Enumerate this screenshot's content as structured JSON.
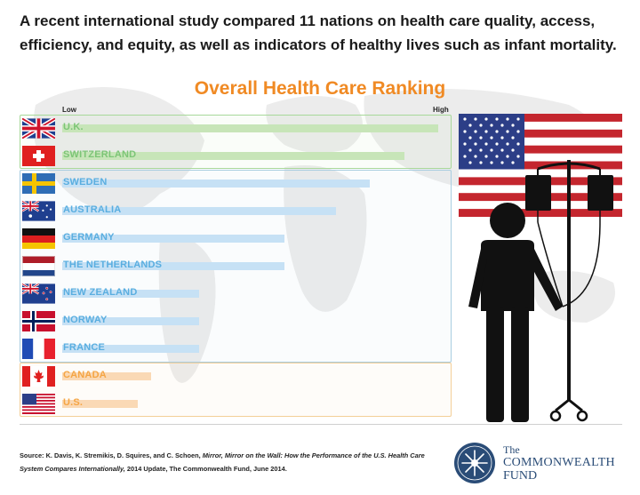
{
  "headline": "A recent international study compared 11 nations on health care quality, access, efficiency, and equity, as well as indicators of healthy lives such as infant mortality.",
  "chart_data": {
    "type": "bar",
    "orientation": "horizontal",
    "title": "Overall Health Care Ranking",
    "axis_low_label": "Low",
    "axis_high_label": "High",
    "categories": [
      "U.K.",
      "SWITZERLAND",
      "SWEDEN",
      "AUSTRALIA",
      "GERMANY",
      "THE NETHERLANDS",
      "NEW ZEALAND",
      "NORWAY",
      "FRANCE",
      "CANADA",
      "U.S."
    ],
    "values": [
      11,
      10,
      9,
      8,
      6.5,
      6.5,
      4,
      4,
      4,
      2.6,
      2.2
    ],
    "xlim": [
      0,
      11
    ],
    "groups": [
      {
        "members": [
          "U.K.",
          "SWITZERLAND"
        ],
        "color": "#c7e5b8",
        "text_color": "#7cc576"
      },
      {
        "members": [
          "SWEDEN",
          "AUSTRALIA",
          "GERMANY",
          "THE NETHERLANDS",
          "NEW ZEALAND",
          "NORWAY",
          "FRANCE"
        ],
        "color": "#c6e1f5",
        "text_color": "#5aaee0"
      },
      {
        "members": [
          "CANADA",
          "U.S."
        ],
        "color": "#fad9b5",
        "text_color": "#f5a544"
      }
    ]
  },
  "source": {
    "prefix": "Source: K. Davis, K. Stremikis, D. Squires, and C. Schoen, ",
    "italic": "Mirror, Mirror on the Wall: How the Performance of the U.S. Health Care System Compares Internationally,",
    "suffix": " 2014 Update, The Commonwealth Fund, June 2014."
  },
  "logo": {
    "line1": "The",
    "line2": "COMMONWEALTH",
    "line3": "FUND"
  },
  "colors": {
    "title": "#f08a24",
    "logo": "#2a4c77"
  }
}
